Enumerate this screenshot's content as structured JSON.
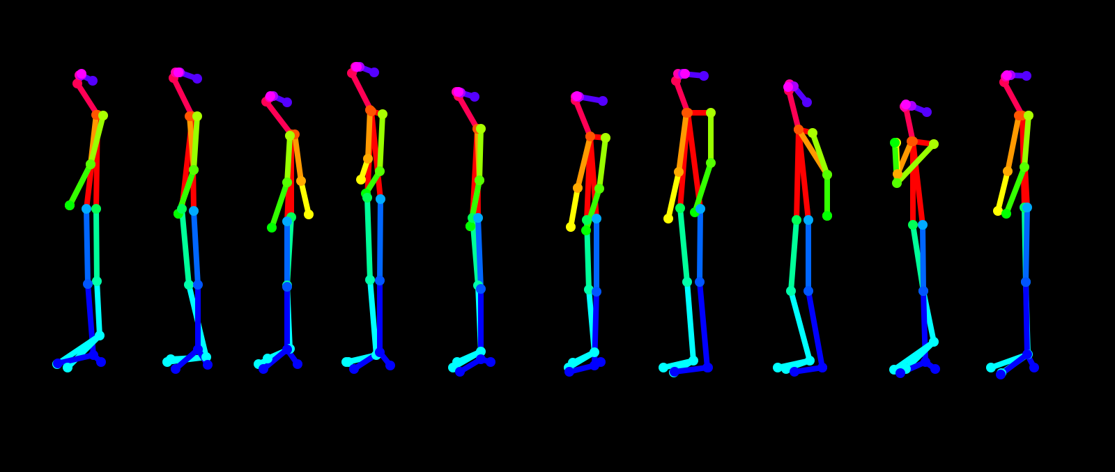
{
  "diagram": {
    "kind": "pose-skeleton-sequence",
    "background": "#000000",
    "frame_count": 10,
    "limb_colors": {
      "neck-r-shoulder": "#ff3300",
      "neck-l-shoulder": "#ff0000",
      "r-upper-arm": "#ff9900",
      "r-forearm": "#ffff00",
      "l-upper-arm": "#99ff00",
      "l-forearm": "#33ff00",
      "neck-r-hip": "#ff0000",
      "r-thigh": "#00ff99",
      "r-shin": "#00ffff",
      "neck-l-hip": "#ff0000",
      "l-thigh": "#0066ff",
      "l-shin": "#0000ff",
      "neck-nose": "#ff0055",
      "nose-r-eye": "#ff00aa",
      "r-eye-r-ear": "#ff00ff",
      "nose-l-eye": "#aa00ff",
      "l-eye-l-ear": "#5500ff",
      "r-foot": "#00ffff",
      "l-foot": "#0000ff"
    },
    "joint_colors": {
      "nose": "#ff0055",
      "neck": "#ff5500",
      "r-shoulder": "#ff5500",
      "r-elbow": "#ffaa00",
      "r-wrist": "#ffff00",
      "l-shoulder": "#aaff00",
      "l-elbow": "#55ff00",
      "l-wrist": "#00ff00",
      "r-hip": "#00ff55",
      "r-knee": "#00ffaa",
      "r-ankle": "#00ffff",
      "l-hip": "#00aaff",
      "l-knee": "#0055ff",
      "l-ankle": "#0000ff",
      "r-eye": "#ff00aa",
      "l-eye": "#aa00ff",
      "r-ear": "#ff00ff",
      "l-ear": "#5500ff",
      "r-toe": "#00ffff",
      "r-heel": "#00ffff",
      "l-toe": "#0000ff",
      "l-heel": "#0000ff"
    }
  }
}
